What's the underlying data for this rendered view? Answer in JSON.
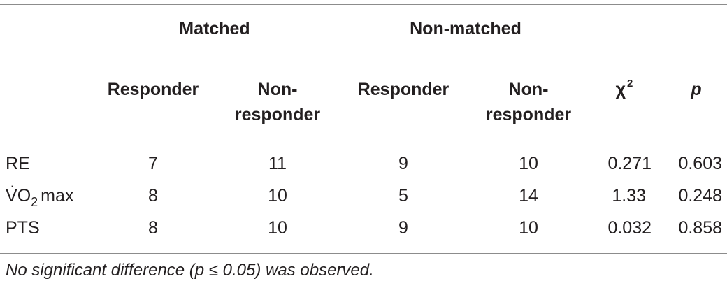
{
  "table": {
    "groups": [
      "Matched",
      "Non-matched"
    ],
    "sub_headers": {
      "matched_responder": "Responder",
      "matched_nonresponder_line1": "Non-",
      "matched_nonresponder_line2": "responder",
      "nonmatched_responder": "Responder",
      "nonmatched_nonresponder_line1": "Non-",
      "nonmatched_nonresponder_line2": "responder",
      "chi": "χ",
      "chi_sup": "2",
      "p": "p"
    },
    "rows": [
      {
        "label": "RE",
        "matched_responder": "7",
        "matched_nonresponder": "11",
        "nonmatched_responder": "9",
        "nonmatched_nonresponder": "10",
        "chi2": "0.271",
        "p": "0.603"
      },
      {
        "label_dot": "·",
        "label_v": "V",
        "label_o": "O",
        "label_sub": "2",
        "label_max": "max",
        "matched_responder": "8",
        "matched_nonresponder": "10",
        "nonmatched_responder": "5",
        "nonmatched_nonresponder": "14",
        "chi2": "1.33",
        "p": "0.248"
      },
      {
        "label": "PTS",
        "matched_responder": "8",
        "matched_nonresponder": "10",
        "nonmatched_responder": "9",
        "nonmatched_nonresponder": "10",
        "chi2": "0.032",
        "p": "0.858"
      }
    ],
    "footnote": "No significant difference (p ≤ 0.05) was observed."
  }
}
